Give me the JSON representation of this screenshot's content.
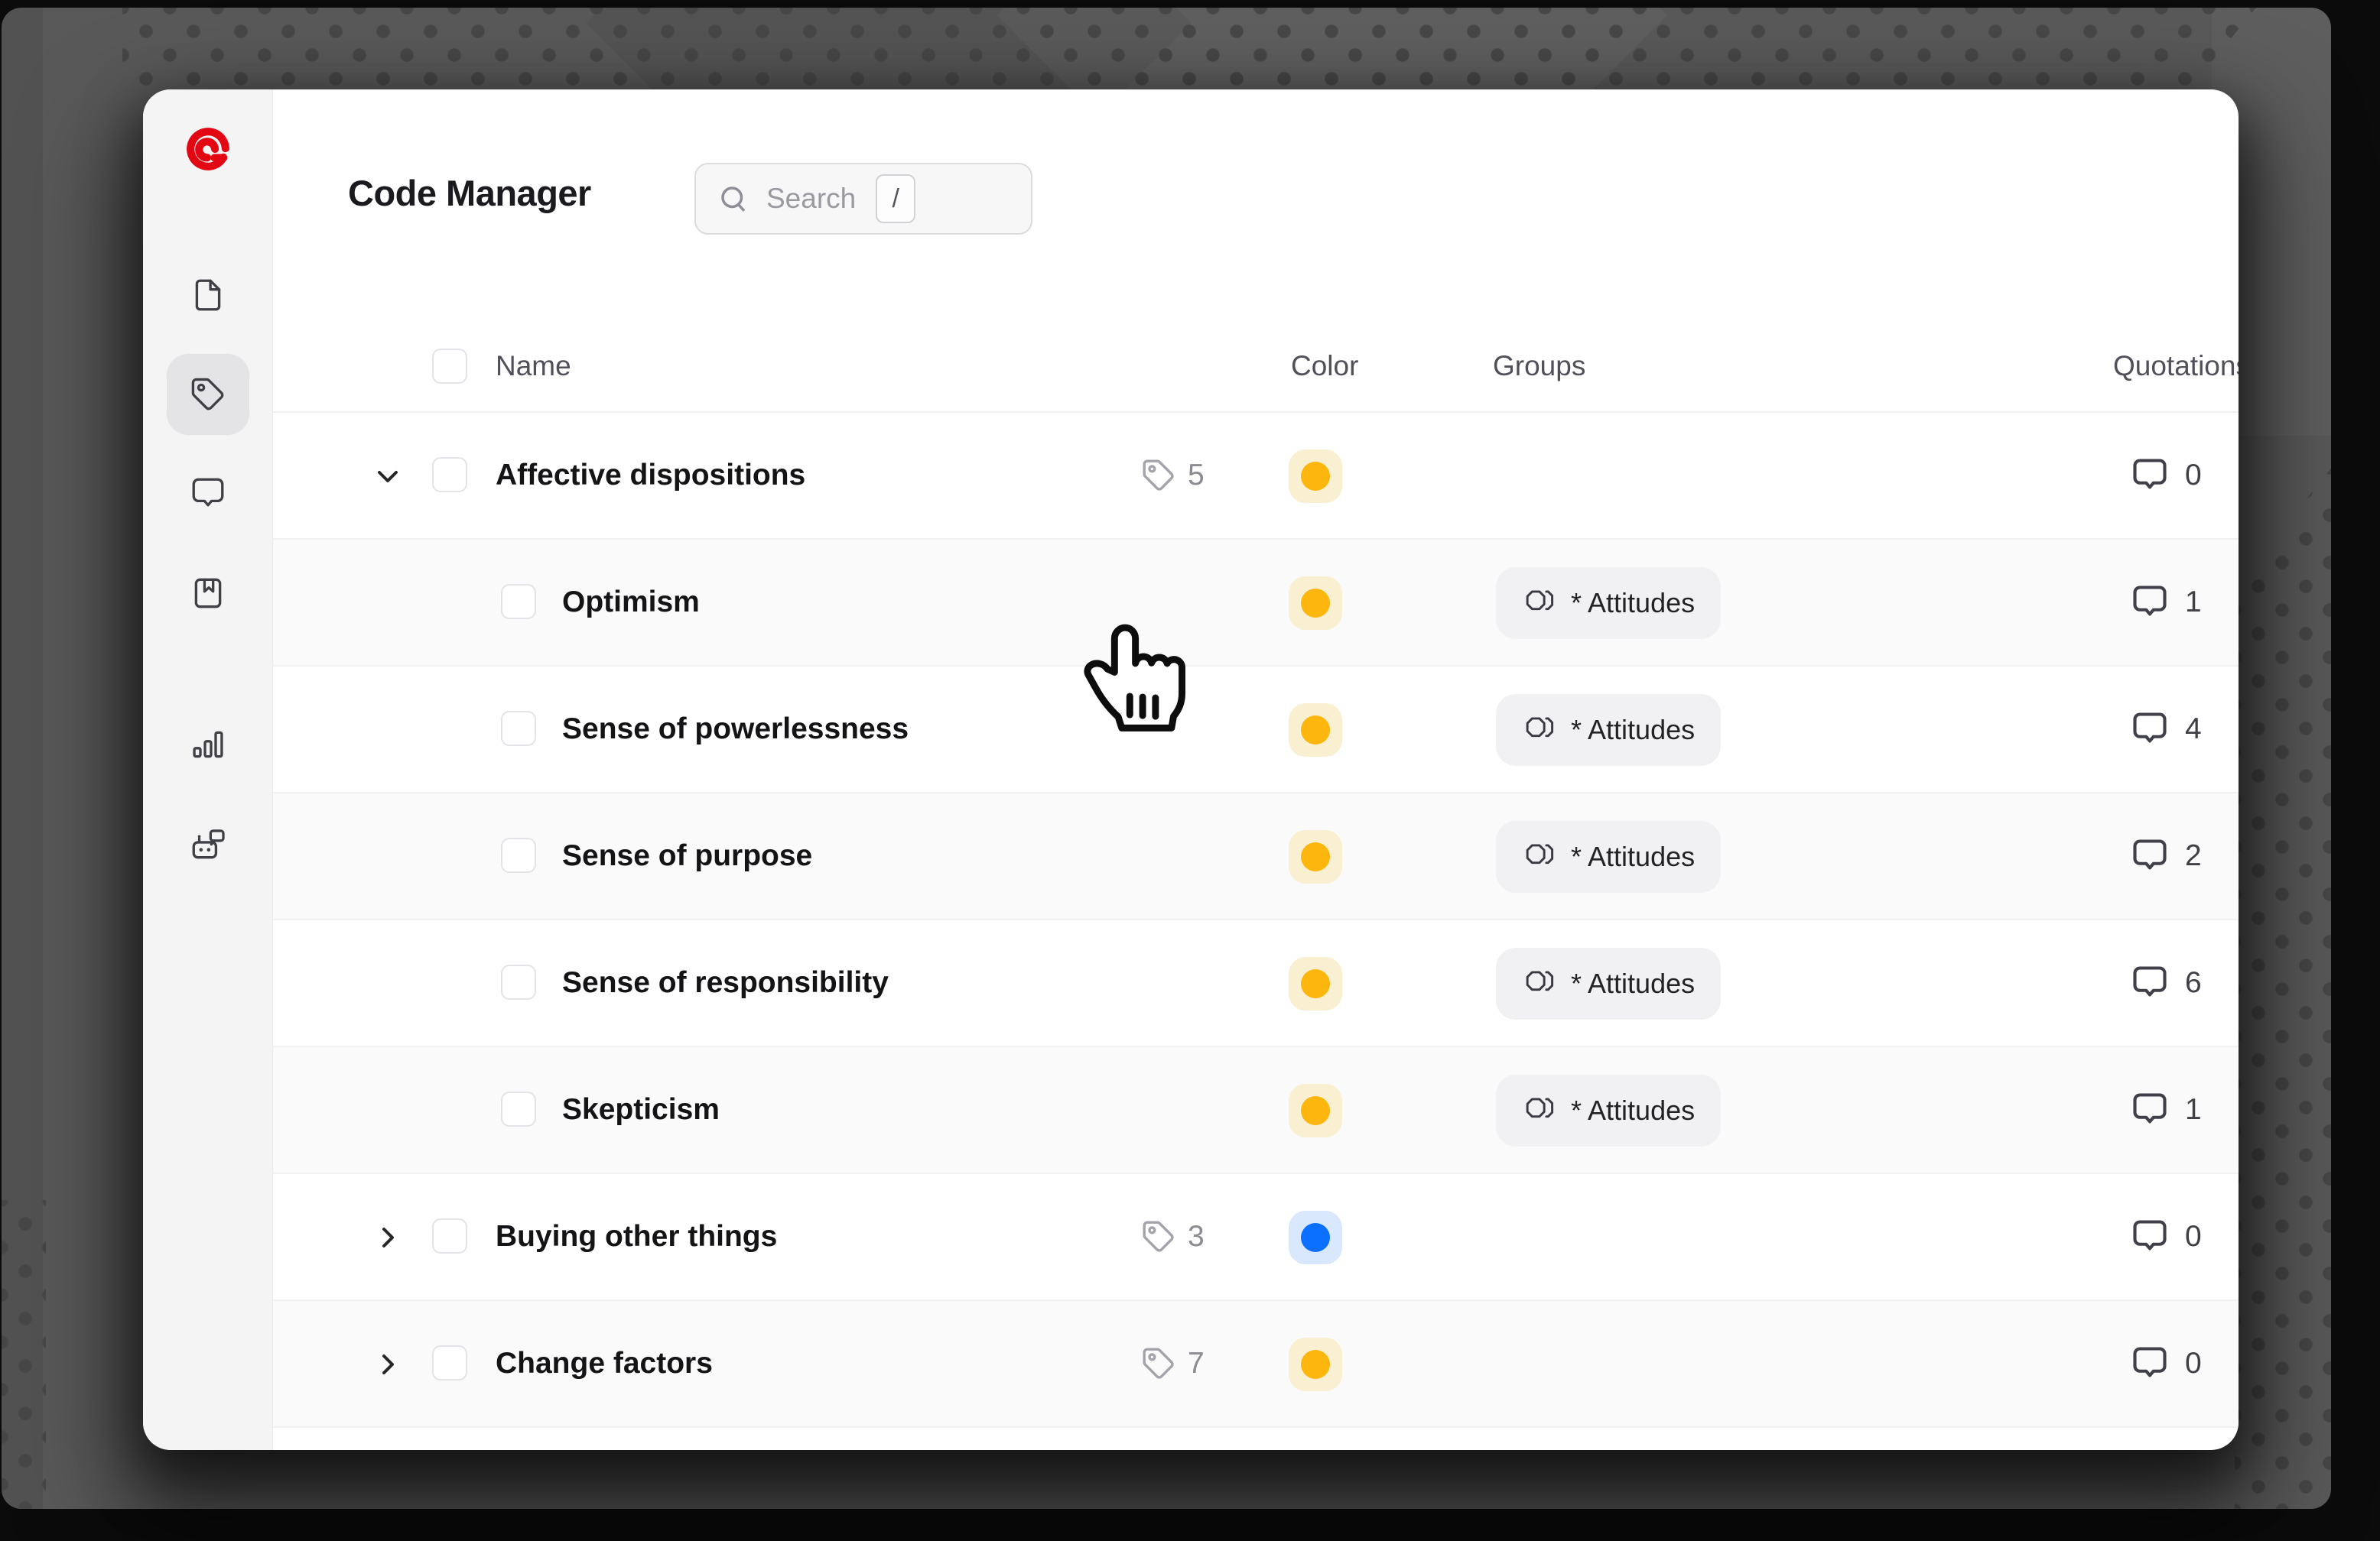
{
  "header": {
    "title": "Code Manager",
    "search_placeholder": "Search",
    "search_shortcut": "/"
  },
  "sidebar": {
    "logo_icon": "atlas-logo",
    "items": [
      {
        "icon": "document-icon",
        "active": false
      },
      {
        "icon": "tag-icon",
        "active": true
      },
      {
        "icon": "comment-icon",
        "active": false
      },
      {
        "icon": "book-icon",
        "active": false
      },
      {
        "icon": "bar-chart-icon",
        "active": false
      },
      {
        "icon": "robot-chat-icon",
        "active": false
      }
    ]
  },
  "table": {
    "columns": {
      "name": "Name",
      "color": "Color",
      "groups": "Groups",
      "quotations": "Quotations"
    },
    "rows": [
      {
        "name": "Affective dispositions",
        "level": 0,
        "chevron": "expanded",
        "tag_count": "5",
        "color": "yellow",
        "group": "",
        "quotes": "0"
      },
      {
        "name": "Optimism",
        "level": 1,
        "chevron": "none",
        "tag_count": "",
        "color": "yellow",
        "group": "* Attitudes",
        "quotes": "1"
      },
      {
        "name": "Sense of powerlessness",
        "level": 1,
        "chevron": "none",
        "tag_count": "",
        "color": "yellow",
        "group": "* Attitudes",
        "quotes": "4"
      },
      {
        "name": "Sense of purpose",
        "level": 1,
        "chevron": "none",
        "tag_count": "",
        "color": "yellow",
        "group": "* Attitudes",
        "quotes": "2"
      },
      {
        "name": "Sense of responsibility",
        "level": 1,
        "chevron": "none",
        "tag_count": "",
        "color": "yellow",
        "group": "* Attitudes",
        "quotes": "6"
      },
      {
        "name": "Skepticism",
        "level": 1,
        "chevron": "none",
        "tag_count": "",
        "color": "yellow",
        "group": "* Attitudes",
        "quotes": "1"
      },
      {
        "name": "Buying other things",
        "level": 0,
        "chevron": "collapsed",
        "tag_count": "3",
        "color": "blue",
        "group": "",
        "quotes": "0"
      },
      {
        "name": "Change factors",
        "level": 0,
        "chevron": "collapsed",
        "tag_count": "7",
        "color": "yellow",
        "group": "",
        "quotes": "0"
      }
    ]
  },
  "colors": {
    "brand_red": "#e30613",
    "yellow_dot": "#fdb60d",
    "yellow_bg": "#f9efd1",
    "blue_dot": "#0b6fff",
    "blue_bg": "#d9e8fc",
    "backdrop": "#595959",
    "backdrop_dots": "#474747"
  }
}
